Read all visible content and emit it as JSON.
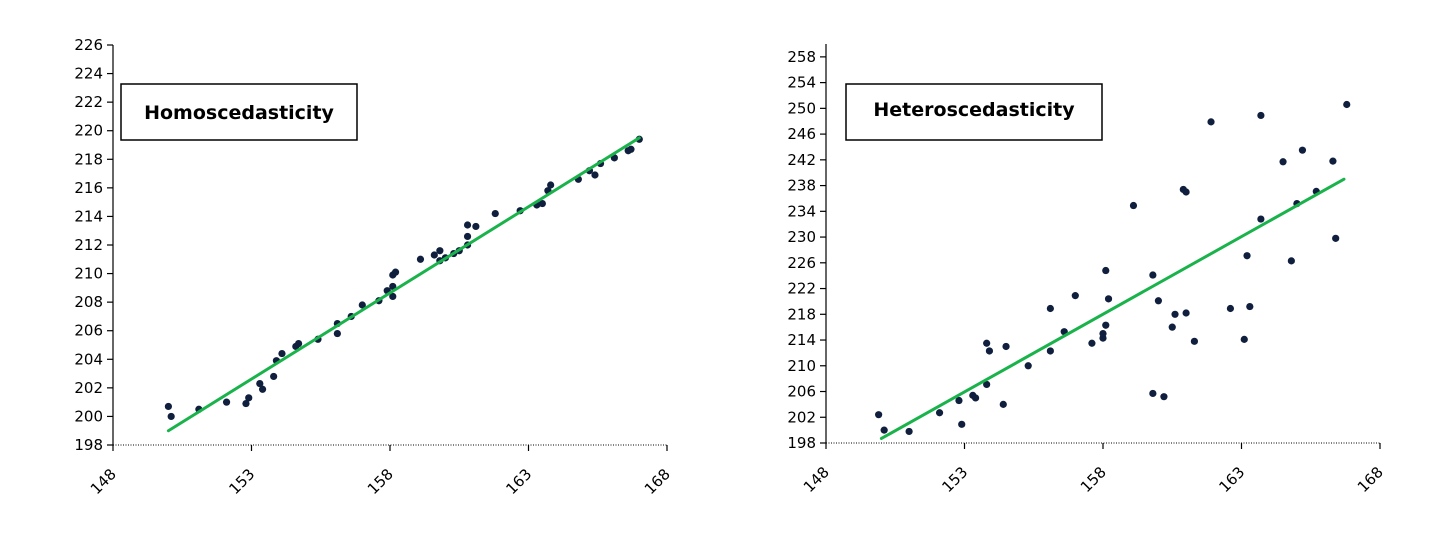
{
  "chart_data": [
    {
      "type": "scatter",
      "title": "Homoscedasticity",
      "xlim": [
        148,
        168
      ],
      "ylim": [
        198,
        226
      ],
      "x_ticks": [
        "148",
        "153",
        "158",
        "163",
        "168"
      ],
      "y_ticks": [
        "198",
        "200",
        "202",
        "204",
        "206",
        "208",
        "210",
        "212",
        "214",
        "216",
        "218",
        "220",
        "222",
        "224",
        "226"
      ],
      "grid": false,
      "point_color": "#0f1f3d",
      "line_color": "#1ab34b",
      "trendline": [
        [
          150.0,
          199.0
        ],
        [
          167.0,
          219.5
        ]
      ],
      "points": [
        [
          150.0,
          200.7
        ],
        [
          150.1,
          200.0
        ],
        [
          151.1,
          200.5
        ],
        [
          152.1,
          201.0
        ],
        [
          152.8,
          200.9
        ],
        [
          152.9,
          201.3
        ],
        [
          153.3,
          202.3
        ],
        [
          153.4,
          201.9
        ],
        [
          153.8,
          202.8
        ],
        [
          153.9,
          203.9
        ],
        [
          154.1,
          204.4
        ],
        [
          154.6,
          204.9
        ],
        [
          154.7,
          205.1
        ],
        [
          155.4,
          205.4
        ],
        [
          156.1,
          206.5
        ],
        [
          156.1,
          205.8
        ],
        [
          156.6,
          207.0
        ],
        [
          157.0,
          207.8
        ],
        [
          157.6,
          208.1
        ],
        [
          157.9,
          208.8
        ],
        [
          158.1,
          208.4
        ],
        [
          158.1,
          209.1
        ],
        [
          158.1,
          209.9
        ],
        [
          158.2,
          210.1
        ],
        [
          159.1,
          211.0
        ],
        [
          159.6,
          211.3
        ],
        [
          159.8,
          211.6
        ],
        [
          159.8,
          210.9
        ],
        [
          160.0,
          211.1
        ],
        [
          160.3,
          211.4
        ],
        [
          160.5,
          211.6
        ],
        [
          160.8,
          212.0
        ],
        [
          160.8,
          212.6
        ],
        [
          160.8,
          213.4
        ],
        [
          161.1,
          213.3
        ],
        [
          161.8,
          214.2
        ],
        [
          162.7,
          214.4
        ],
        [
          163.3,
          214.8
        ],
        [
          163.5,
          214.9
        ],
        [
          163.7,
          215.8
        ],
        [
          163.8,
          216.2
        ],
        [
          164.8,
          216.6
        ],
        [
          165.2,
          217.2
        ],
        [
          165.4,
          216.9
        ],
        [
          165.6,
          217.7
        ],
        [
          166.1,
          218.1
        ],
        [
          166.6,
          218.6
        ],
        [
          166.7,
          218.7
        ],
        [
          167.0,
          219.4
        ]
      ]
    },
    {
      "type": "scatter",
      "title": "Heteroscedasticity",
      "xlim": [
        148,
        168
      ],
      "ylim": [
        198,
        260
      ],
      "x_ticks": [
        "148",
        "153",
        "158",
        "163",
        "168"
      ],
      "y_ticks": [
        "198",
        "202",
        "206",
        "210",
        "214",
        "218",
        "222",
        "226",
        "230",
        "234",
        "238",
        "242",
        "246",
        "250",
        "254",
        "258"
      ],
      "grid": false,
      "point_color": "#0f1f3d",
      "line_color": "#1ab34b",
      "trendline": [
        [
          150.0,
          198.7
        ],
        [
          166.7,
          239.0
        ]
      ],
      "points": [
        [
          149.9,
          202.4
        ],
        [
          150.1,
          200.0
        ],
        [
          151.0,
          199.8
        ],
        [
          152.1,
          202.7
        ],
        [
          152.8,
          204.6
        ],
        [
          152.9,
          200.9
        ],
        [
          153.3,
          205.4
        ],
        [
          153.4,
          205.0
        ],
        [
          153.8,
          207.1
        ],
        [
          153.8,
          213.5
        ],
        [
          153.9,
          212.3
        ],
        [
          154.4,
          204.0
        ],
        [
          154.5,
          213.0
        ],
        [
          155.3,
          210.0
        ],
        [
          156.1,
          218.9
        ],
        [
          156.1,
          212.3
        ],
        [
          156.6,
          215.3
        ],
        [
          157.0,
          220.9
        ],
        [
          157.6,
          213.5
        ],
        [
          158.0,
          214.3
        ],
        [
          158.0,
          215.0
        ],
        [
          158.1,
          216.3
        ],
        [
          158.1,
          224.8
        ],
        [
          158.2,
          220.4
        ],
        [
          159.1,
          234.9
        ],
        [
          159.8,
          224.1
        ],
        [
          159.8,
          205.7
        ],
        [
          160.0,
          220.1
        ],
        [
          160.2,
          205.2
        ],
        [
          160.5,
          216.0
        ],
        [
          160.6,
          218.0
        ],
        [
          160.9,
          237.4
        ],
        [
          161.0,
          237.0
        ],
        [
          161.0,
          218.2
        ],
        [
          161.3,
          213.8
        ],
        [
          161.9,
          247.9
        ],
        [
          162.6,
          218.9
        ],
        [
          163.1,
          214.1
        ],
        [
          163.2,
          227.1
        ],
        [
          163.3,
          219.2
        ],
        [
          163.7,
          232.8
        ],
        [
          163.7,
          248.9
        ],
        [
          164.5,
          241.7
        ],
        [
          164.8,
          226.3
        ],
        [
          165.0,
          235.2
        ],
        [
          165.2,
          243.5
        ],
        [
          165.7,
          237.1
        ],
        [
          166.3,
          241.8
        ],
        [
          166.4,
          229.8
        ],
        [
          166.8,
          250.6
        ]
      ]
    }
  ]
}
